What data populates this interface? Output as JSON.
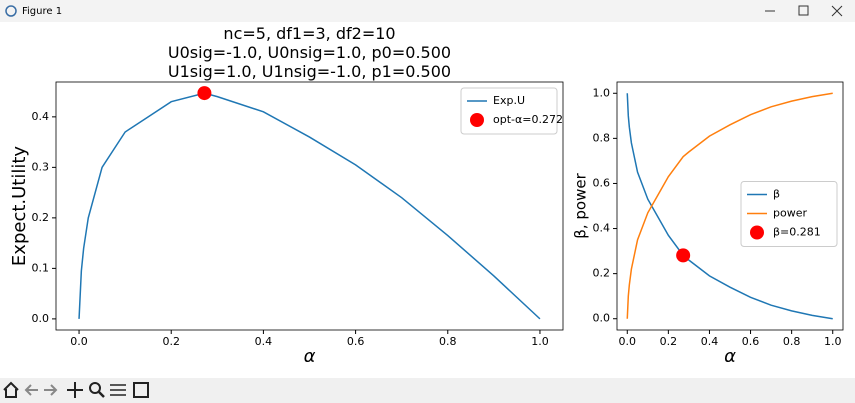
{
  "window": {
    "title": "Figure 1"
  },
  "chart_data": [
    {
      "type": "line",
      "title": "nc=5, df1=3, df2=10\nU0sig=-1.0, U0nsig=1.0, p0=0.500\nU1sig=1.0, U1nsig=-1.0, p1=0.500",
      "x_label": "α",
      "y_label": "Expect.Utility",
      "x": [
        0,
        0.005,
        0.01,
        0.02,
        0.05,
        0.1,
        0.15,
        0.2,
        0.272,
        0.3,
        0.4,
        0.5,
        0.6,
        0.7,
        0.8,
        0.9,
        1.0
      ],
      "series": [
        {
          "name": "Exp.U",
          "color": "#1f77b4",
          "values": [
            0,
            0.095,
            0.14,
            0.2,
            0.3,
            0.37,
            0.4,
            0.43,
            0.447,
            0.44,
            0.41,
            0.36,
            0.305,
            0.24,
            0.165,
            0.085,
            0
          ]
        }
      ],
      "points": [
        {
          "name": "opt-α=0.272",
          "color": "#ff0000",
          "x": 0.272,
          "y": 0.447
        }
      ],
      "xlim": [
        -0.05,
        1.05
      ],
      "ylim": [
        -0.022,
        0.469
      ],
      "xticks": [
        {
          "value": 0,
          "label": "0.0"
        },
        {
          "value": 0.2,
          "label": "0.2"
        },
        {
          "value": 0.4,
          "label": "0.4"
        },
        {
          "value": 0.6,
          "label": "0.6"
        },
        {
          "value": 0.8,
          "label": "0.8"
        },
        {
          "value": 1,
          "label": "1.0"
        }
      ],
      "yticks": [
        {
          "value": 0,
          "label": "0.0"
        },
        {
          "value": 0.1,
          "label": "0.1"
        },
        {
          "value": 0.2,
          "label": "0.2"
        },
        {
          "value": 0.3,
          "label": "0.3"
        },
        {
          "value": 0.4,
          "label": "0.4"
        }
      ],
      "legend": "upper right"
    },
    {
      "type": "line",
      "x_label": "α",
      "y_label": "β, power",
      "x": [
        0,
        0.005,
        0.01,
        0.02,
        0.05,
        0.1,
        0.15,
        0.2,
        0.272,
        0.3,
        0.4,
        0.5,
        0.6,
        0.7,
        0.8,
        0.9,
        1.0
      ],
      "series": [
        {
          "name": "β",
          "color": "#1f77b4",
          "values": [
            1,
            0.9,
            0.85,
            0.78,
            0.65,
            0.53,
            0.45,
            0.37,
            0.281,
            0.26,
            0.19,
            0.14,
            0.095,
            0.06,
            0.035,
            0.015,
            0
          ]
        },
        {
          "name": "power",
          "color": "#ff7f0e",
          "values": [
            0,
            0.1,
            0.15,
            0.22,
            0.35,
            0.47,
            0.55,
            0.63,
            0.719,
            0.74,
            0.81,
            0.86,
            0.905,
            0.94,
            0.965,
            0.985,
            1
          ]
        }
      ],
      "points": [
        {
          "name": "β=0.281",
          "color": "#ff0000",
          "x": 0.272,
          "y": 0.281
        }
      ],
      "xlim": [
        -0.05,
        1.05
      ],
      "ylim": [
        -0.05,
        1.05
      ],
      "xticks": [
        {
          "value": 0,
          "label": "0.0"
        },
        {
          "value": 0.2,
          "label": "0.2"
        },
        {
          "value": 0.4,
          "label": "0.4"
        },
        {
          "value": 0.6,
          "label": "0.6"
        },
        {
          "value": 0.8,
          "label": "0.8"
        },
        {
          "value": 1,
          "label": "1.0"
        }
      ],
      "yticks": [
        {
          "value": 0,
          "label": "0.0"
        },
        {
          "value": 0.2,
          "label": "0.2"
        },
        {
          "value": 0.4,
          "label": "0.4"
        },
        {
          "value": 0.6,
          "label": "0.6"
        },
        {
          "value": 0.8,
          "label": "0.8"
        },
        {
          "value": 1,
          "label": "1.0"
        }
      ],
      "legend": "center right"
    }
  ]
}
